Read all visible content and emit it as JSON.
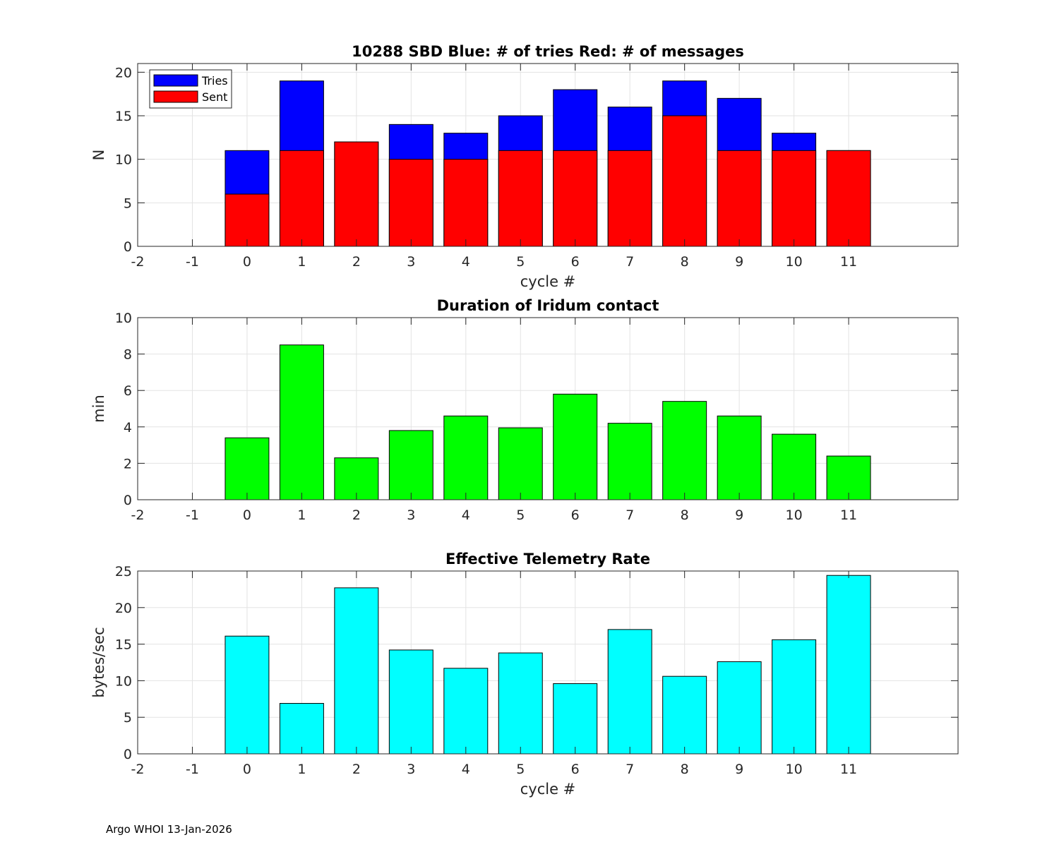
{
  "footer": "Argo WHOI 13-Jan-2026",
  "chart_data": [
    {
      "type": "bar",
      "subtype": "overlaid",
      "title": "10288 SBD  Blue: # of tries   Red: # of messages",
      "xlabel": "cycle #",
      "ylabel": "N",
      "xlim": [
        -2,
        13
      ],
      "ylim": [
        0,
        21
      ],
      "xticks": [
        "-2",
        "-1",
        "0",
        "1",
        "2",
        "3",
        "4",
        "5",
        "6",
        "7",
        "8",
        "9",
        "10",
        "11"
      ],
      "yticks": [
        "0",
        "5",
        "10",
        "15",
        "20"
      ],
      "x": [
        0,
        1,
        2,
        3,
        4,
        5,
        6,
        7,
        8,
        9,
        10,
        11
      ],
      "series": [
        {
          "name": "Tries",
          "color": "#0000ff",
          "values": [
            11,
            19,
            12,
            14,
            13,
            15,
            18,
            16,
            19,
            17,
            13,
            11
          ]
        },
        {
          "name": "Sent",
          "color": "#ff0000",
          "values": [
            6,
            11,
            12,
            10,
            10,
            11,
            11,
            11,
            15,
            11,
            11,
            11
          ]
        }
      ],
      "legend": "top-left",
      "grid": true
    },
    {
      "type": "bar",
      "title": "Duration of Iridum contact",
      "xlabel": "",
      "ylabel": "min",
      "xlim": [
        -2,
        13
      ],
      "ylim": [
        0,
        10
      ],
      "xticks": [
        "-2",
        "-1",
        "0",
        "1",
        "2",
        "3",
        "4",
        "5",
        "6",
        "7",
        "8",
        "9",
        "10",
        "11"
      ],
      "yticks": [
        "0",
        "2",
        "4",
        "6",
        "8",
        "10"
      ],
      "x": [
        0,
        1,
        2,
        3,
        4,
        5,
        6,
        7,
        8,
        9,
        10,
        11
      ],
      "series": [
        {
          "name": "Duration",
          "color": "#00ff00",
          "values": [
            3.4,
            8.5,
            2.3,
            3.8,
            4.6,
            3.95,
            5.8,
            4.2,
            5.4,
            4.6,
            3.6,
            2.4
          ]
        }
      ],
      "grid": true
    },
    {
      "type": "bar",
      "title": "Effective Telemetry Rate",
      "xlabel": "cycle #",
      "ylabel": "bytes/sec",
      "xlim": [
        -2,
        13
      ],
      "ylim": [
        0,
        25
      ],
      "xticks": [
        "-2",
        "-1",
        "0",
        "1",
        "2",
        "3",
        "4",
        "5",
        "6",
        "7",
        "8",
        "9",
        "10",
        "11"
      ],
      "yticks": [
        "0",
        "5",
        "10",
        "15",
        "20",
        "25"
      ],
      "x": [
        0,
        1,
        2,
        3,
        4,
        5,
        6,
        7,
        8,
        9,
        10,
        11
      ],
      "series": [
        {
          "name": "Rate",
          "color": "#00ffff",
          "values": [
            16.1,
            6.9,
            22.7,
            14.2,
            11.7,
            13.8,
            9.6,
            17.0,
            10.6,
            12.6,
            15.6,
            24.4
          ]
        }
      ],
      "grid": true
    }
  ]
}
